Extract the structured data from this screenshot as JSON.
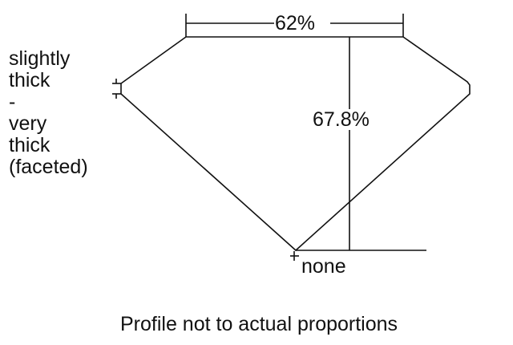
{
  "labels": {
    "table_pct": "62%",
    "depth_pct": "67.8%",
    "girdle_lines": [
      "slightly",
      "thick",
      "-",
      "very",
      "thick",
      "(faceted)"
    ],
    "culet": "none",
    "caption": "Profile not to actual proportions"
  }
}
